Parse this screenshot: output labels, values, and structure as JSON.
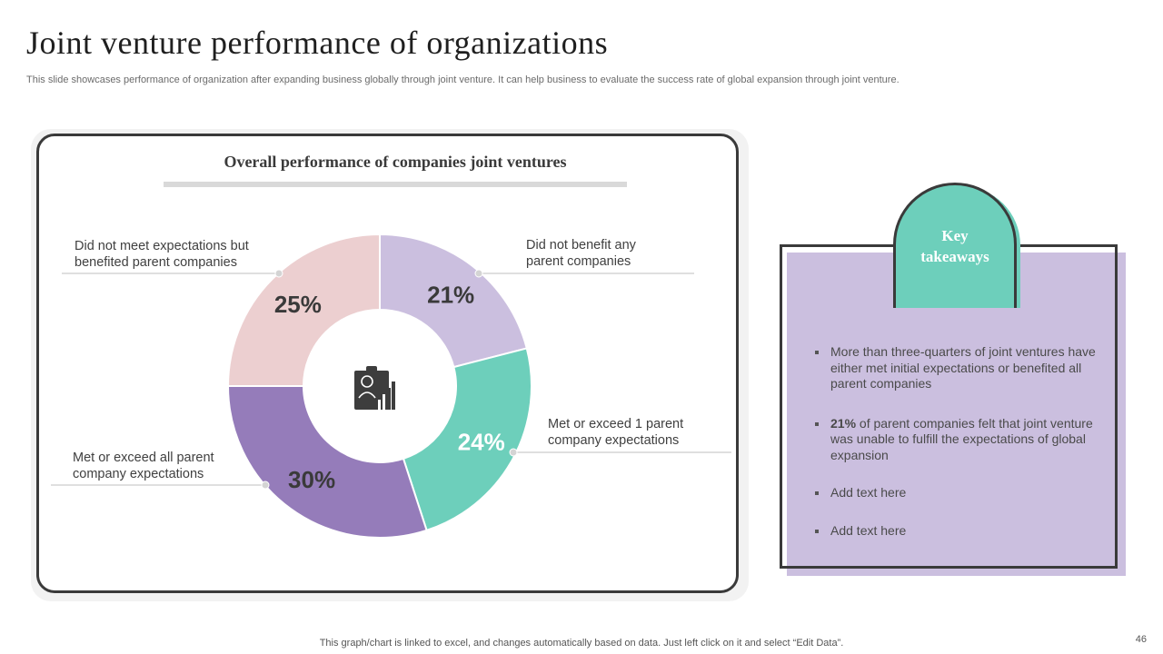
{
  "slide": {
    "title": "Joint venture performance of organizations",
    "subtitle": "This slide showcases performance of organization after expanding business globally through joint venture. It can help business to evaluate the success rate of global expansion through joint venture.",
    "footer": "This graph/chart is linked to excel,  and changes automatically based on data. Just left click on it and select “Edit Data”.",
    "page_number": "46"
  },
  "chart_data": {
    "type": "pie",
    "title": "Overall performance of companies joint ventures",
    "donut": true,
    "center_icon": "clipboard-chart-icon",
    "slices": [
      {
        "label": "Did not benefit any parent companies",
        "value": 21,
        "value_label": "21%",
        "color": "#cbbfdf"
      },
      {
        "label": "Met or exceed 1 parent company expectations",
        "value": 24,
        "value_label": "24%",
        "color": "#6dcfbb"
      },
      {
        "label": "Met or exceed all parent company expectations",
        "value": 30,
        "value_label": "30%",
        "color": "#957cba"
      },
      {
        "label": "Did not meet expectations but benefited parent companies",
        "value": 25,
        "value_label": "25%",
        "color": "#eccfd0"
      }
    ]
  },
  "callouts": {
    "top_left_line1": "Did not meet expectations but",
    "top_left_line2": "benefited parent companies",
    "top_right_line1": "Did not benefit any",
    "top_right_line2": "parent companies",
    "right_line1": "Met or exceed 1 parent",
    "right_line2": "company expectations",
    "left_line1": "Met or exceed all parent",
    "left_line2": "company expectations"
  },
  "takeaways": {
    "heading_line1": "Key",
    "heading_line2": "takeaways",
    "items": [
      {
        "bold": "",
        "text": "More than three-quarters of joint ventures have either met initial expectations or benefited all parent companies"
      },
      {
        "bold": "21%",
        "text": " of parent companies felt that joint venture was unable to fulfill the expectations of global expansion"
      },
      {
        "bold": "",
        "text": "Add text here"
      },
      {
        "bold": "",
        "text": "Add text here"
      }
    ]
  }
}
